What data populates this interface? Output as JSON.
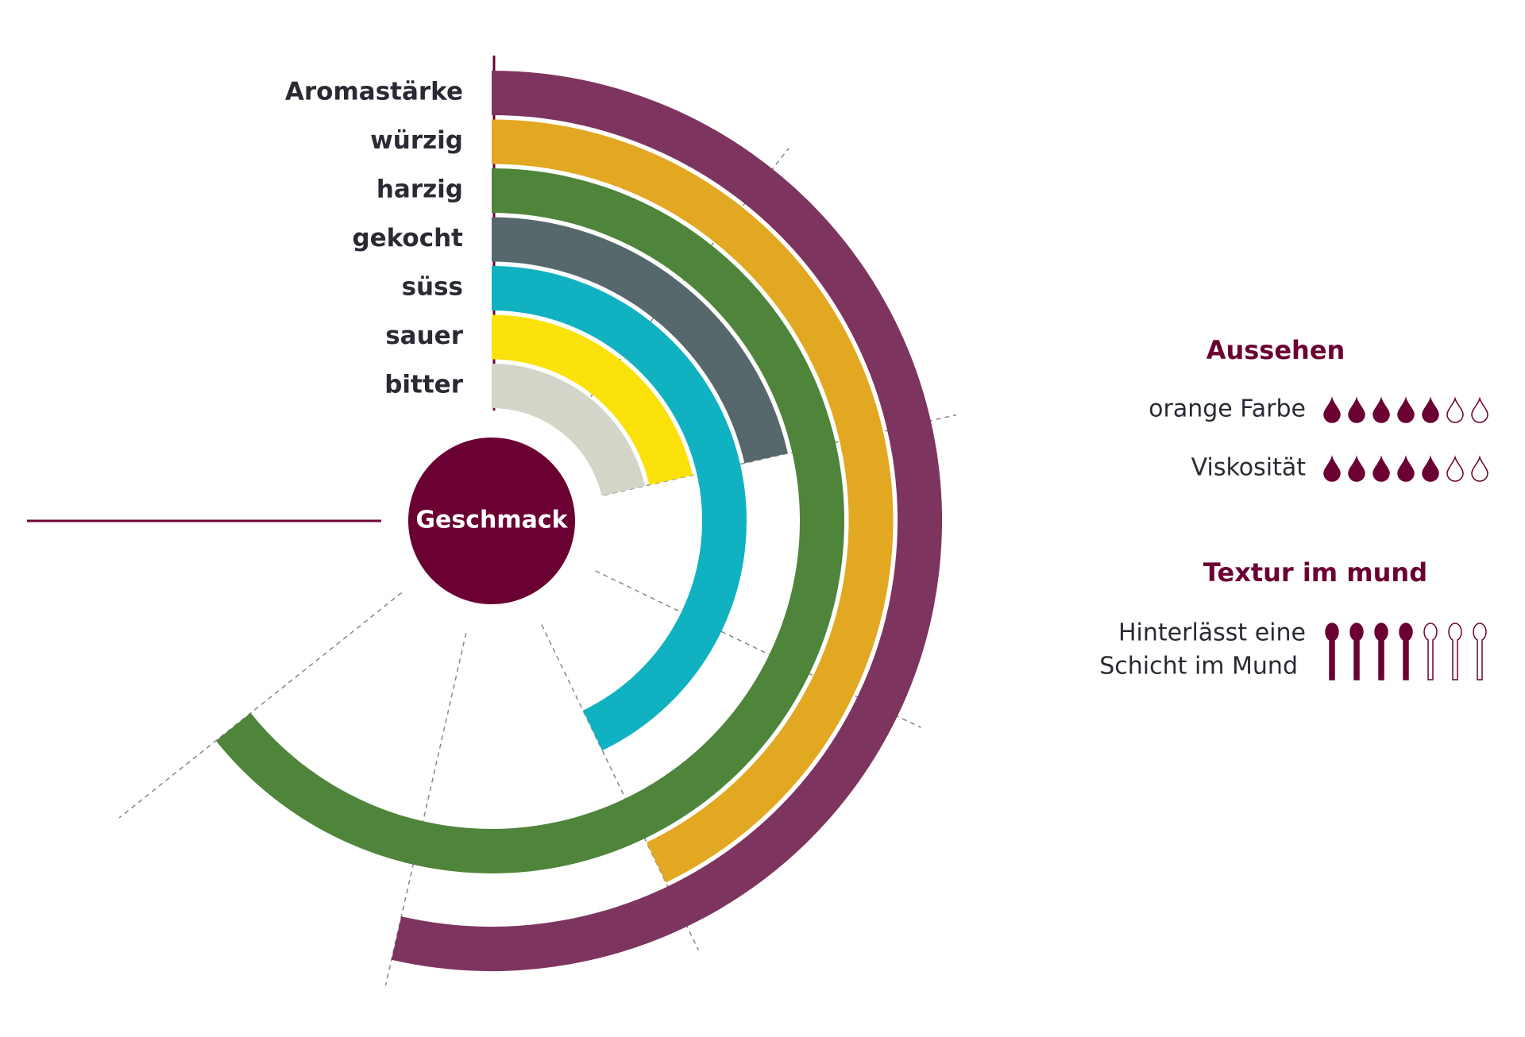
{
  "chart_data": {
    "type": "radial-bar",
    "center_label": "Geschmack",
    "categories": [
      "Aromastärke",
      "würzig",
      "harzig",
      "gekocht",
      "süss",
      "sauer",
      "bitter"
    ],
    "values": [
      5,
      4,
      6,
      2,
      4,
      2,
      2
    ],
    "colors": [
      "#7d3560",
      "#e2a822",
      "#4f843b",
      "#56686b",
      "#10b2c2",
      "#fbe10a",
      "#d3d5c8"
    ],
    "rlim": [
      0,
      7
    ],
    "rticks": [
      1,
      2,
      3,
      4,
      5,
      6
    ],
    "grid": true
  },
  "aussehen": {
    "title": "Aussehen",
    "max": 7,
    "items": [
      {
        "label": "orange Farbe",
        "value": 5
      },
      {
        "label": "Viskosität",
        "value": 5
      }
    ]
  },
  "textur": {
    "title": "Textur im mund",
    "max": 7,
    "items": [
      {
        "label": [
          "Hinterlässt eine",
          "Schicht im Mund"
        ],
        "value": 4
      }
    ]
  }
}
